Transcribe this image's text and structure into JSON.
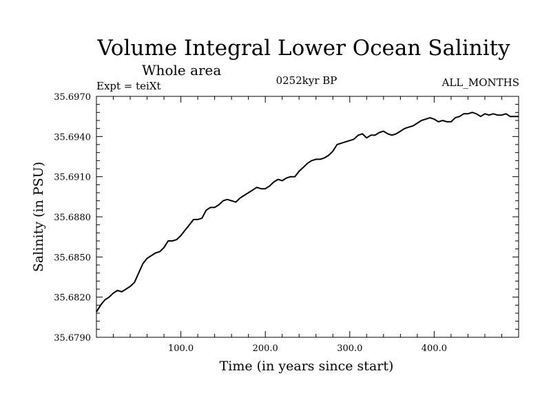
{
  "chart_data": {
    "type": "line",
    "title": "Volume Integral Lower Ocean Salinity",
    "subtitle": "Whole area",
    "experiment": "Expt = teiXt",
    "period": "0252kyr BP",
    "months": "ALL_MONTHS",
    "xlabel": "Time (in years since start)",
    "ylabel": "Salinity (in PSU)",
    "xlim": [
      0,
      500
    ],
    "ylim": [
      35.679,
      35.697
    ],
    "xticks": [
      100.0,
      200.0,
      300.0,
      400.0
    ],
    "xtick_labels": [
      "100.0",
      "200.0",
      "300.0",
      "400.0"
    ],
    "yticks": [
      35.679,
      35.682,
      35.685,
      35.688,
      35.691,
      35.694,
      35.697
    ],
    "ytick_labels": [
      "35.6790",
      "35.6820",
      "35.6850",
      "35.6880",
      "35.6910",
      "35.6940",
      "35.6970"
    ],
    "grid": false,
    "line_color": "#000000",
    "series": [
      {
        "x": [
          0,
          5,
          10,
          15,
          20,
          25,
          30,
          35,
          40,
          45,
          50,
          55,
          60,
          65,
          70,
          75,
          80,
          85,
          90,
          95,
          100,
          105,
          110,
          115,
          120,
          125,
          130,
          135,
          140,
          145,
          150,
          155,
          160,
          165,
          170,
          175,
          180,
          185,
          190,
          195,
          200,
          205,
          210,
          215,
          220,
          225,
          230,
          235,
          240,
          245,
          250,
          255,
          260,
          265,
          270,
          275,
          280,
          285,
          290,
          295,
          300,
          305,
          310,
          315,
          320,
          325,
          330,
          335,
          340,
          345,
          350,
          355,
          360,
          365,
          370,
          375,
          380,
          385,
          390,
          395,
          400,
          405,
          410,
          415,
          420,
          425,
          430,
          435,
          440,
          445,
          450,
          455,
          460,
          465,
          470,
          475,
          480,
          485,
          490,
          495,
          500
        ],
        "values": [
          35.6809,
          35.6814,
          35.6818,
          35.682,
          35.6823,
          35.6825,
          35.6824,
          35.6826,
          35.6828,
          35.6831,
          35.6838,
          35.6845,
          35.6849,
          35.6851,
          35.6853,
          35.6854,
          35.6857,
          35.6862,
          35.6862,
          35.6863,
          35.6866,
          35.687,
          35.6874,
          35.6878,
          35.6878,
          35.6879,
          35.6885,
          35.6887,
          35.6887,
          35.6889,
          35.6892,
          35.6893,
          35.6892,
          35.6891,
          35.6894,
          35.6896,
          35.6898,
          35.69,
          35.6902,
          35.6901,
          35.6901,
          35.6903,
          35.6906,
          35.6908,
          35.6907,
          35.6909,
          35.691,
          35.691,
          35.6914,
          35.6917,
          35.692,
          35.6922,
          35.6923,
          35.6923,
          35.6924,
          35.6926,
          35.6929,
          35.6934,
          35.6935,
          35.6936,
          35.6937,
          35.6938,
          35.6941,
          35.6942,
          35.6939,
          35.6941,
          35.6941,
          35.6943,
          35.6944,
          35.6942,
          35.6941,
          35.6942,
          35.6944,
          35.6946,
          35.6947,
          35.6948,
          35.695,
          35.6952,
          35.6953,
          35.6954,
          35.6953,
          35.6951,
          35.6952,
          35.6951,
          35.6951,
          35.6954,
          35.6955,
          35.6957,
          35.6957,
          35.6958,
          35.6957,
          35.6955,
          35.6957,
          35.6956,
          35.6957,
          35.6956,
          35.6956,
          35.6957,
          35.6955,
          35.6955,
          35.6955
        ]
      }
    ]
  }
}
